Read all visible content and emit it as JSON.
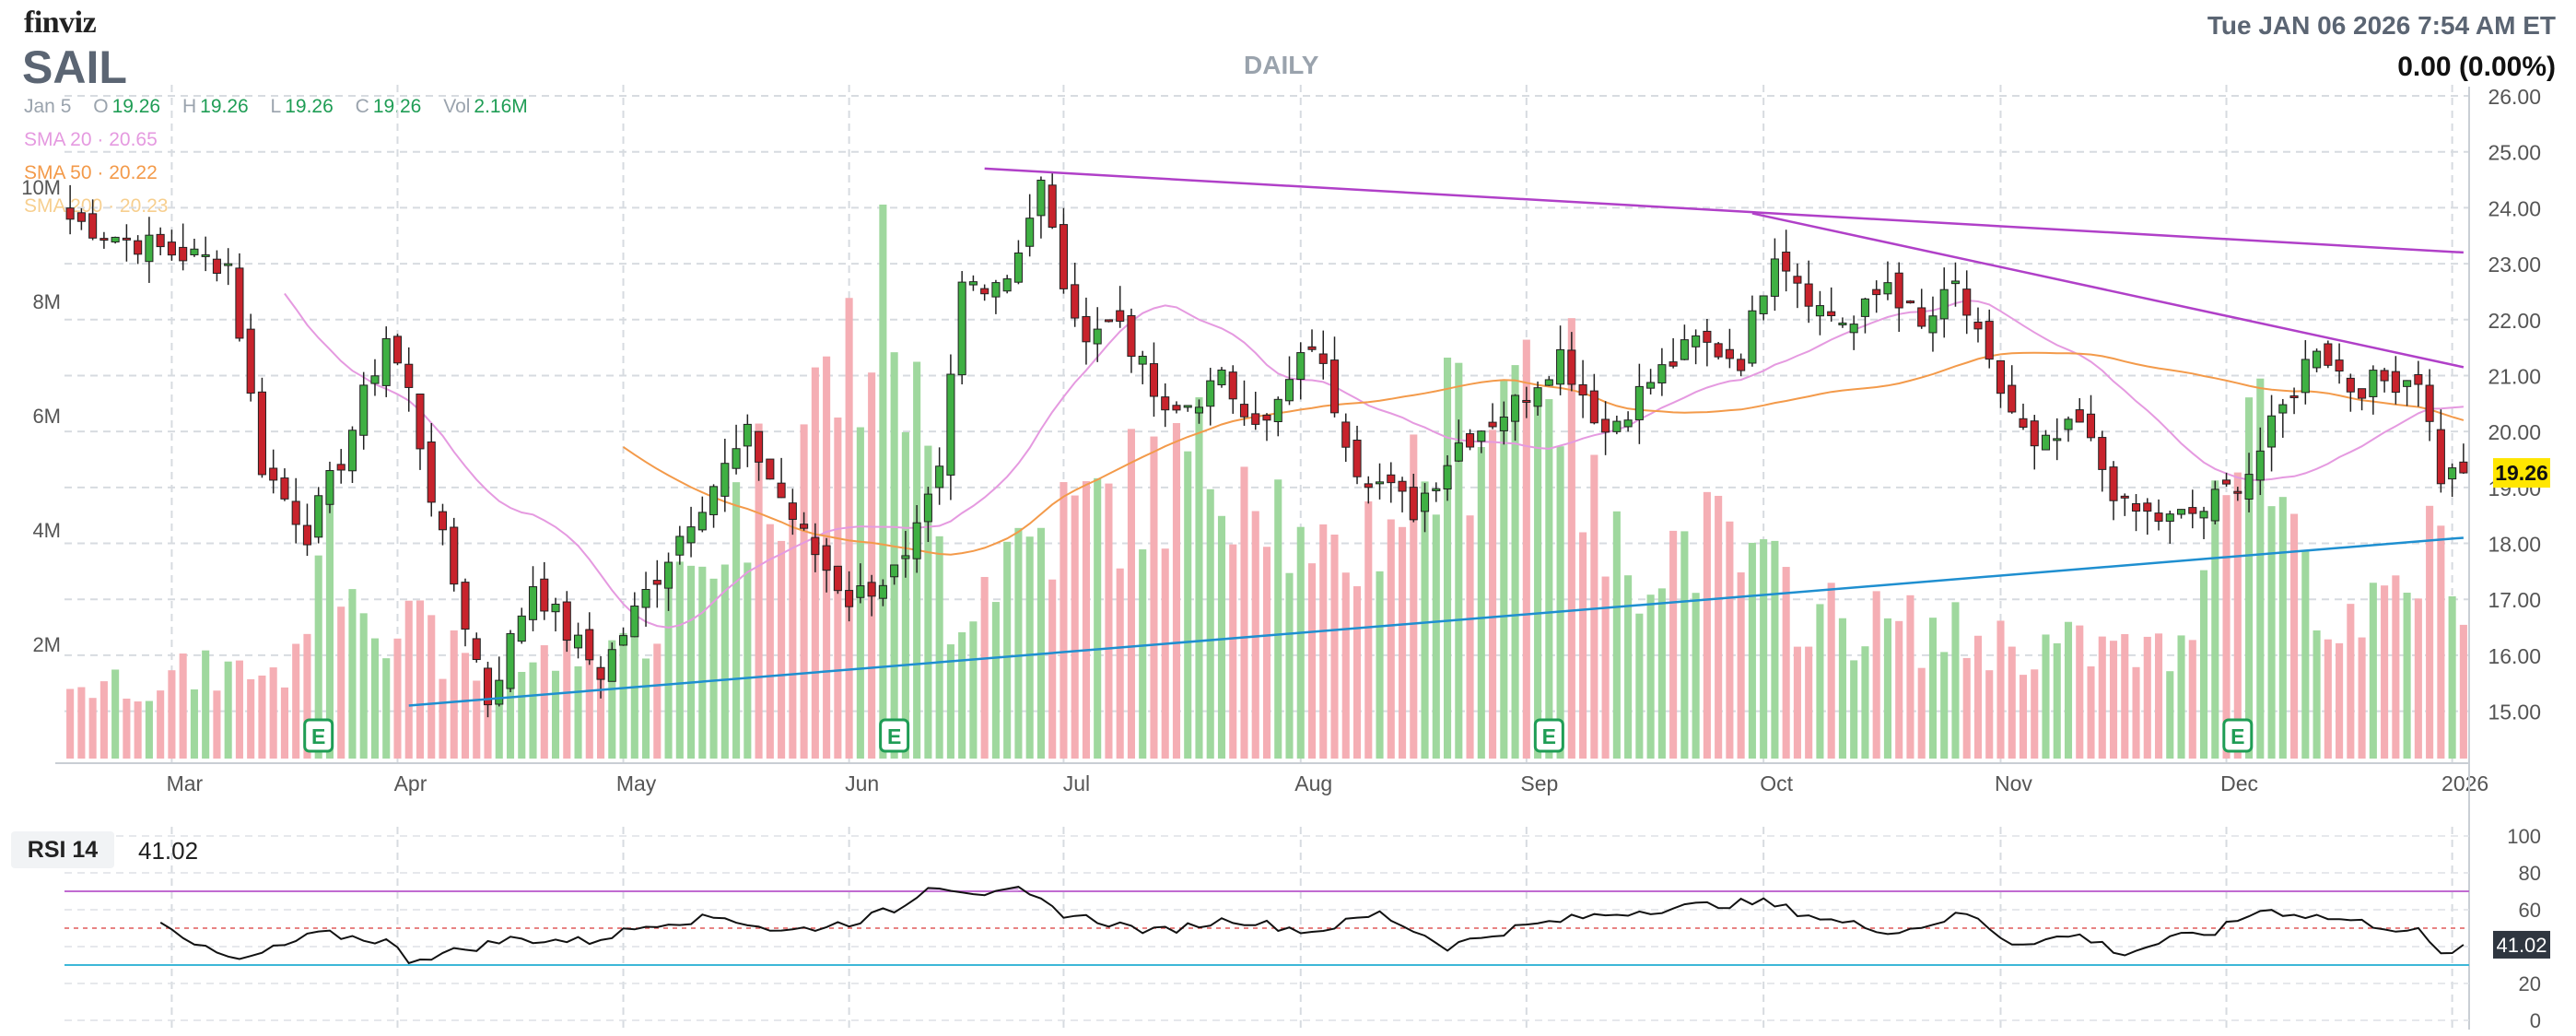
{
  "header": {
    "logo": "finviz",
    "ticker": "SAIL",
    "timeframe": "DAILY",
    "datetime": "Tue JAN 06 2026 7:54 AM ET",
    "change": "0.00 (0.00%)"
  },
  "ohlc": {
    "date": "Jan 5",
    "o_label": "O",
    "o": "19.26",
    "h_label": "H",
    "h": "19.26",
    "l_label": "L",
    "l": "19.26",
    "c_label": "C",
    "c": "19.26",
    "vol_label": "Vol",
    "vol": "2.16M"
  },
  "sma": [
    {
      "label": "SMA 20",
      "value": "20.65",
      "color": "#e59ae0"
    },
    {
      "label": "SMA 50",
      "value": "20.22",
      "color": "#f39a4a"
    },
    {
      "label": "SMA 200",
      "value": "20.23",
      "color": "#f7cf8f"
    }
  ],
  "colors": {
    "up": "#3fb043",
    "down": "#c8232c",
    "vol_up": "#9fd89e",
    "vol_down": "#f5aeb4",
    "upper_trend": "#b040c8",
    "lower_trend": "#1f8fd0",
    "rsi_line": "#111111",
    "rsi_over": "#c06bd1",
    "rsi_under": "#3db7d8",
    "rsi_mid": "#e05a5a",
    "earnings": "#1f9d55",
    "price_tag": "#ffe600"
  },
  "chart_data": [
    {
      "type": "candlestick",
      "title": "SAIL",
      "ylim": [
        14.4,
        26.0
      ],
      "y_ticks": [
        "26.00",
        "25.00",
        "24.00",
        "23.00",
        "22.00",
        "21.00",
        "20.00",
        "19.00",
        "18.00",
        "17.00",
        "16.00",
        "15.00"
      ],
      "x_ticks": [
        "Mar",
        "Apr",
        "May",
        "Jun",
        "Jul",
        "Aug",
        "Sep",
        "Oct",
        "Nov",
        "Dec",
        "2026"
      ],
      "x_tick_index": [
        9,
        29,
        49,
        69,
        88,
        109,
        129,
        150,
        171,
        191,
        211
      ],
      "n_bars": 213,
      "last_price_label": "19.26",
      "last_price": 19.26,
      "anchors": [
        [
          0,
          23.8
        ],
        [
          4,
          23.5
        ],
        [
          9,
          23.2
        ],
        [
          14,
          23.0
        ],
        [
          17,
          19.4
        ],
        [
          21,
          18.2
        ],
        [
          24,
          19.5
        ],
        [
          28,
          21.7
        ],
        [
          30,
          20.7
        ],
        [
          33,
          18.0
        ],
        [
          37,
          15.2
        ],
        [
          41,
          17.3
        ],
        [
          44,
          16.4
        ],
        [
          47,
          15.7
        ],
        [
          51,
          17.1
        ],
        [
          55,
          18.5
        ],
        [
          60,
          19.9
        ],
        [
          65,
          18.1
        ],
        [
          69,
          17.0
        ],
        [
          74,
          17.6
        ],
        [
          77,
          19.2
        ],
        [
          79,
          22.6
        ],
        [
          83,
          22.8
        ],
        [
          86,
          24.4
        ],
        [
          89,
          21.8
        ],
        [
          93,
          22.0
        ],
        [
          97,
          20.2
        ],
        [
          102,
          20.9
        ],
        [
          106,
          20.1
        ],
        [
          110,
          21.6
        ],
        [
          114,
          19.4
        ],
        [
          119,
          18.6
        ],
        [
          123,
          19.8
        ],
        [
          128,
          20.5
        ],
        [
          132,
          21.4
        ],
        [
          136,
          20.0
        ],
        [
          140,
          20.9
        ],
        [
          144,
          21.6
        ],
        [
          148,
          21.3
        ],
        [
          151,
          23.3
        ],
        [
          155,
          22.2
        ],
        [
          158,
          21.9
        ],
        [
          161,
          22.7
        ],
        [
          164,
          21.8
        ],
        [
          167,
          22.6
        ],
        [
          170,
          21.1
        ],
        [
          174,
          19.6
        ],
        [
          178,
          20.1
        ],
        [
          182,
          18.6
        ],
        [
          186,
          18.4
        ],
        [
          189,
          18.6
        ],
        [
          193,
          19.3
        ],
        [
          196,
          20.4
        ],
        [
          199,
          21.6
        ],
        [
          202,
          20.8
        ],
        [
          205,
          20.9
        ],
        [
          208,
          21.0
        ],
        [
          210,
          19.2
        ],
        [
          212,
          19.26
        ]
      ],
      "earnings_bars": [
        22,
        73,
        131,
        192
      ],
      "earnings_label": "E",
      "trendlines": [
        {
          "name": "upper-1",
          "x": [
            81,
            212
          ],
          "y": [
            24.7,
            23.2
          ]
        },
        {
          "name": "upper-2",
          "x": [
            149,
            212
          ],
          "y": [
            23.9,
            21.15
          ]
        },
        {
          "name": "lower",
          "x": [
            30,
            212
          ],
          "y": [
            15.1,
            18.1
          ]
        }
      ],
      "sma": [
        {
          "name": "SMA 20",
          "period": 20
        },
        {
          "name": "SMA 50",
          "period": 50
        }
      ]
    },
    {
      "type": "bar",
      "title": "Volume",
      "y_ticks": [
        "10M",
        "8M",
        "6M",
        "4M",
        "2M"
      ],
      "ylim": [
        0,
        10
      ],
      "anchors": [
        [
          0,
          1.3
        ],
        [
          20,
          1.6
        ],
        [
          22,
          4.2
        ],
        [
          28,
          2.5
        ],
        [
          37,
          1.4
        ],
        [
          52,
          2.4
        ],
        [
          73,
          8.0
        ],
        [
          78,
          2.6
        ],
        [
          84,
          3.8
        ],
        [
          105,
          5.5
        ],
        [
          110,
          3.0
        ],
        [
          117,
          4.4
        ],
        [
          131,
          7.6
        ],
        [
          136,
          3.5
        ],
        [
          145,
          3.8
        ],
        [
          155,
          2.5
        ],
        [
          172,
          2.0
        ],
        [
          187,
          1.8
        ],
        [
          192,
          6.8
        ],
        [
          201,
          2.0
        ],
        [
          205,
          2.6
        ],
        [
          211,
          4.0
        ],
        [
          212,
          2.16
        ]
      ]
    },
    {
      "type": "line",
      "title": "RSI 14",
      "value_label": "41.02",
      "value": 41.02,
      "ylim": [
        0,
        100
      ],
      "y_ticks": [
        "100",
        "80",
        "60",
        "40",
        "20",
        "0"
      ],
      "levels": {
        "over": 70,
        "mid": 50,
        "under": 30
      },
      "anchors": [
        [
          8,
          55
        ],
        [
          12,
          38
        ],
        [
          15,
          32
        ],
        [
          22,
          47
        ],
        [
          28,
          43
        ],
        [
          30,
          33
        ],
        [
          33,
          36
        ],
        [
          39,
          44
        ],
        [
          46,
          43
        ],
        [
          52,
          53
        ],
        [
          58,
          56
        ],
        [
          63,
          48
        ],
        [
          69,
          53
        ],
        [
          74,
          62
        ],
        [
          76,
          74
        ],
        [
          79,
          71
        ],
        [
          82,
          68
        ],
        [
          84,
          70
        ],
        [
          88,
          58
        ],
        [
          96,
          48
        ],
        [
          103,
          55
        ],
        [
          110,
          48
        ],
        [
          116,
          58
        ],
        [
          122,
          40
        ],
        [
          128,
          50
        ],
        [
          134,
          56
        ],
        [
          140,
          60
        ],
        [
          146,
          63
        ],
        [
          150,
          64
        ],
        [
          156,
          54
        ],
        [
          162,
          48
        ],
        [
          168,
          58
        ],
        [
          172,
          42
        ],
        [
          178,
          46
        ],
        [
          182,
          36
        ],
        [
          186,
          44
        ],
        [
          190,
          48
        ],
        [
          194,
          60
        ],
        [
          197,
          58
        ],
        [
          202,
          54
        ],
        [
          208,
          48
        ],
        [
          210,
          35
        ],
        [
          212,
          41
        ]
      ]
    }
  ]
}
